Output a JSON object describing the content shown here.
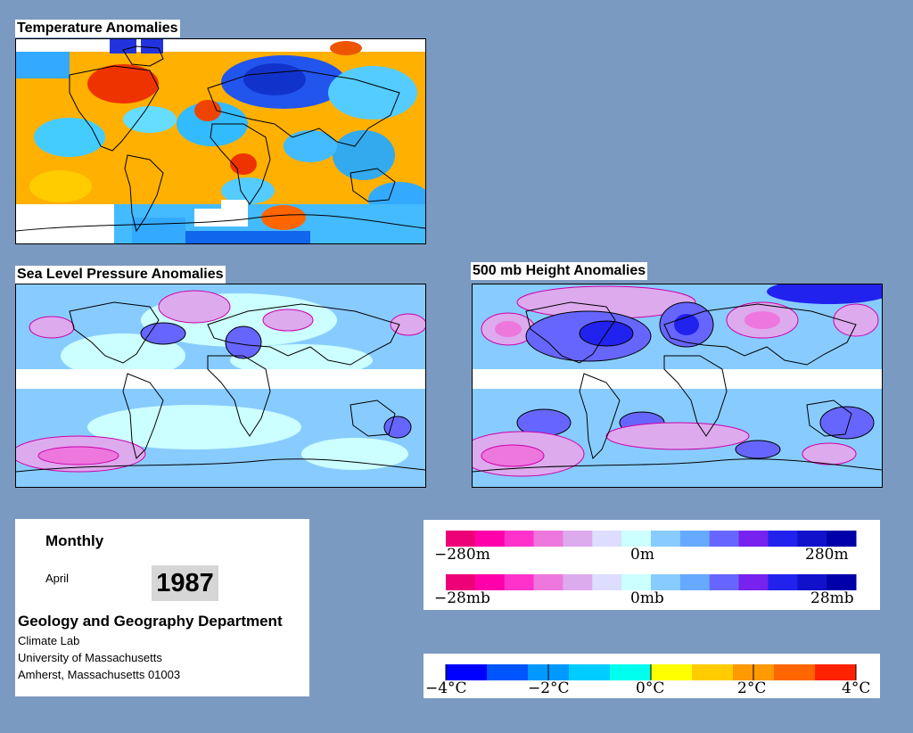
{
  "panels": {
    "temperature": {
      "title": "Temperature Anomalies"
    },
    "slp": {
      "title": "Sea Level Pressure Anomalies"
    },
    "height500": {
      "title": "500 mb Height Anomalies"
    }
  },
  "info": {
    "period": "Monthly",
    "month": "April",
    "year": "1987",
    "department": "Geology and Geography Department",
    "lab": "Climate Lab",
    "university": "University of Massachusetts",
    "address": "Amherst, Massachusetts 01003"
  },
  "legends": {
    "height": {
      "labels": [
        "−280m",
        "0m",
        "280m"
      ]
    },
    "pressure": {
      "labels": [
        "−28mb",
        "0mb",
        "28mb"
      ]
    },
    "temperature": {
      "labels": [
        "−4°C",
        "−2°C",
        "0°C",
        "2°C",
        "4°C"
      ]
    }
  },
  "colors": {
    "page_background": "#7b9ac2",
    "anomaly_scale": [
      "#ee0077",
      "#ff00aa",
      "#ff33cc",
      "#ee77dd",
      "#ddaaee",
      "#ddddff",
      "#ccffff",
      "#88ccff",
      "#66aaff",
      "#6666ff",
      "#7722ee",
      "#2222ee",
      "#1111cc",
      "#0000aa"
    ],
    "temperature_scale": [
      "#0000ff",
      "#0055ff",
      "#0099ff",
      "#00ccff",
      "#00ffee",
      "#ffff00",
      "#ffcc00",
      "#ff9900",
      "#ff6600",
      "#ff2200"
    ]
  }
}
